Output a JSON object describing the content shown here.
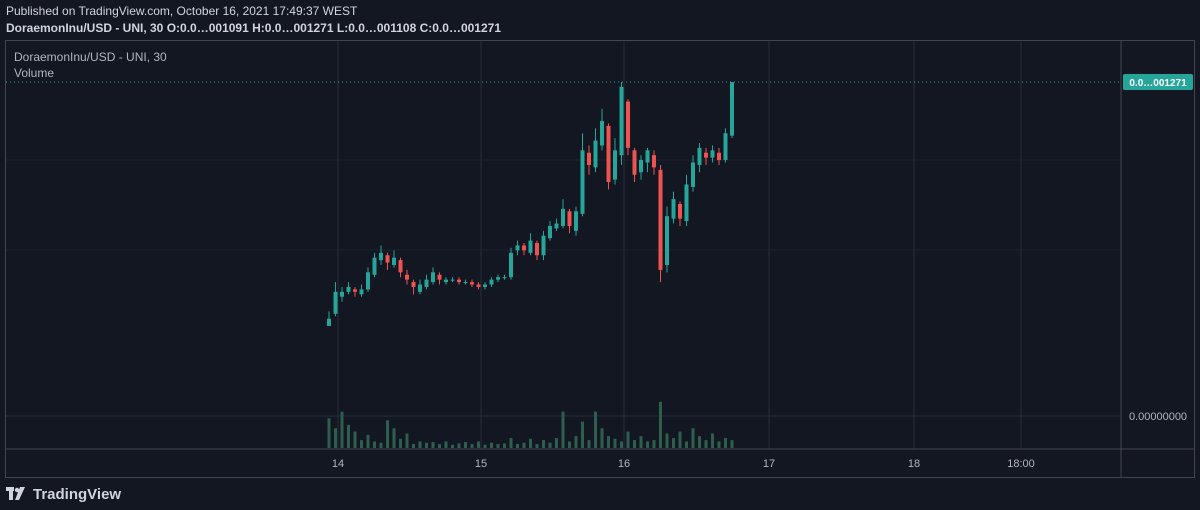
{
  "header": {
    "published": "Published on TradingView.com, October 16, 2021 17:49:37 WEST",
    "symbol_line": "DoraemonInu/USD - UNI, 30",
    "o_label": "O:",
    "o_value": "0.0…001091",
    "h_label": "H:",
    "h_value": "0.0…001271",
    "l_label": "L:",
    "l_value": "0.0…001108",
    "c_label": "C:",
    "c_value": "0.0…001271"
  },
  "legend": {
    "title": "DoraemonInu/USD - UNI, 30",
    "volume": "Volume"
  },
  "price_axis": {
    "last_price_label": "0.0…001271",
    "zero_label": "0.00000000"
  },
  "footer": {
    "brand": "TradingView"
  },
  "colors": {
    "background": "#131722",
    "up": "#26a69a",
    "down": "#ef5350",
    "volume": "#2e5e4e",
    "grid": "#2a2e39",
    "last_price_tag": "#26a69a"
  },
  "chart_data": {
    "type": "candlestick",
    "title": "DoraemonInu/USD - UNI, 30",
    "x_ticks": [
      "14",
      "15",
      "16",
      "17",
      "18",
      "18:00"
    ],
    "y_ticks": [
      "0.0…001271",
      "0.00000000"
    ],
    "grid": true,
    "series": [
      {
        "name": "price",
        "values": [
          [
            0.0,
            0.03,
            0.06,
            0.0,
            0.05
          ],
          [
            0.05,
            0.14,
            0.18,
            0.04,
            0.12
          ],
          [
            0.12,
            0.14,
            0.16,
            0.1,
            0.14
          ],
          [
            0.14,
            0.16,
            0.18,
            0.13,
            0.15
          ],
          [
            0.15,
            0.14,
            0.16,
            0.12,
            0.13
          ],
          [
            0.13,
            0.15,
            0.17,
            0.12,
            0.15
          ],
          [
            0.15,
            0.22,
            0.24,
            0.14,
            0.21
          ],
          [
            0.21,
            0.28,
            0.3,
            0.2,
            0.27
          ],
          [
            0.27,
            0.3,
            0.33,
            0.25,
            0.29
          ],
          [
            0.29,
            0.26,
            0.3,
            0.23,
            0.25
          ],
          [
            0.25,
            0.28,
            0.31,
            0.24,
            0.27
          ],
          [
            0.27,
            0.22,
            0.28,
            0.2,
            0.21
          ],
          [
            0.21,
            0.19,
            0.23,
            0.17,
            0.18
          ],
          [
            0.18,
            0.16,
            0.19,
            0.13,
            0.14
          ],
          [
            0.14,
            0.17,
            0.19,
            0.13,
            0.16
          ],
          [
            0.16,
            0.19,
            0.21,
            0.15,
            0.18
          ],
          [
            0.18,
            0.22,
            0.24,
            0.17,
            0.21
          ],
          [
            0.21,
            0.19,
            0.22,
            0.17,
            0.18
          ],
          [
            0.18,
            0.19,
            0.2,
            0.17,
            0.19
          ],
          [
            0.19,
            0.19,
            0.2,
            0.18,
            0.19
          ],
          [
            0.19,
            0.18,
            0.2,
            0.17,
            0.18
          ],
          [
            0.18,
            0.18,
            0.19,
            0.17,
            0.18
          ],
          [
            0.18,
            0.17,
            0.19,
            0.16,
            0.17
          ],
          [
            0.17,
            0.16,
            0.18,
            0.15,
            0.16
          ],
          [
            0.16,
            0.17,
            0.18,
            0.15,
            0.17
          ],
          [
            0.17,
            0.19,
            0.2,
            0.16,
            0.19
          ],
          [
            0.19,
            0.2,
            0.21,
            0.18,
            0.2
          ],
          [
            0.2,
            0.2,
            0.21,
            0.19,
            0.2
          ],
          [
            0.2,
            0.3,
            0.32,
            0.19,
            0.31
          ],
          [
            0.31,
            0.33,
            0.35,
            0.29,
            0.33
          ],
          [
            0.33,
            0.31,
            0.34,
            0.29,
            0.3
          ],
          [
            0.3,
            0.35,
            0.38,
            0.29,
            0.34
          ],
          [
            0.34,
            0.29,
            0.35,
            0.27,
            0.29
          ],
          [
            0.29,
            0.37,
            0.39,
            0.27,
            0.36
          ],
          [
            0.36,
            0.41,
            0.43,
            0.35,
            0.4
          ],
          [
            0.4,
            0.42,
            0.44,
            0.39,
            0.41
          ],
          [
            0.41,
            0.48,
            0.52,
            0.4,
            0.47
          ],
          [
            0.47,
            0.41,
            0.48,
            0.38,
            0.39
          ],
          [
            0.39,
            0.47,
            0.49,
            0.37,
            0.46
          ],
          [
            0.46,
            0.72,
            0.79,
            0.45,
            0.71
          ],
          [
            0.71,
            0.66,
            0.74,
            0.62,
            0.65
          ],
          [
            0.65,
            0.76,
            0.81,
            0.63,
            0.74
          ],
          [
            0.74,
            0.84,
            0.89,
            0.72,
            0.82
          ],
          [
            0.82,
            0.59,
            0.83,
            0.56,
            0.6
          ],
          [
            0.6,
            0.72,
            0.77,
            0.58,
            0.7
          ],
          [
            0.7,
            0.98,
            1.0,
            0.66,
            0.92
          ],
          [
            0.92,
            0.73,
            0.93,
            0.7,
            0.72
          ],
          [
            0.72,
            0.62,
            0.73,
            0.59,
            0.63
          ],
          [
            0.63,
            0.68,
            0.7,
            0.6,
            0.67
          ],
          [
            0.67,
            0.72,
            0.73,
            0.63,
            0.7
          ],
          [
            0.7,
            0.65,
            0.72,
            0.62,
            0.64
          ],
          [
            0.64,
            0.23,
            0.66,
            0.18,
            0.25
          ],
          [
            0.25,
            0.45,
            0.49,
            0.22,
            0.44
          ],
          [
            0.44,
            0.52,
            0.55,
            0.42,
            0.5
          ],
          [
            0.5,
            0.44,
            0.51,
            0.41,
            0.43
          ],
          [
            0.43,
            0.58,
            0.62,
            0.41,
            0.57
          ],
          [
            0.57,
            0.67,
            0.7,
            0.55,
            0.66
          ],
          [
            0.66,
            0.73,
            0.75,
            0.63,
            0.71
          ],
          [
            0.71,
            0.69,
            0.73,
            0.66,
            0.69
          ],
          [
            0.69,
            0.72,
            0.74,
            0.67,
            0.71
          ],
          [
            0.71,
            0.68,
            0.73,
            0.66,
            0.68
          ],
          [
            0.68,
            0.79,
            0.81,
            0.67,
            0.78
          ],
          [
            0.78,
            1.0,
            1.0,
            0.77,
            1.0
          ]
        ]
      },
      {
        "name": "Volume",
        "values": [
          0.45,
          0.3,
          0.55,
          0.35,
          0.25,
          0.12,
          0.2,
          0.1,
          0.08,
          0.42,
          0.3,
          0.14,
          0.22,
          0.06,
          0.1,
          0.08,
          0.09,
          0.06,
          0.1,
          0.05,
          0.07,
          0.09,
          0.06,
          0.1,
          0.05,
          0.08,
          0.06,
          0.07,
          0.15,
          0.06,
          0.08,
          0.14,
          0.06,
          0.12,
          0.08,
          0.15,
          0.55,
          0.1,
          0.18,
          0.4,
          0.12,
          0.55,
          0.3,
          0.18,
          0.14,
          0.1,
          0.25,
          0.12,
          0.18,
          0.1,
          0.12,
          0.7,
          0.22,
          0.15,
          0.25,
          0.1,
          0.3,
          0.18,
          0.12,
          0.22,
          0.1,
          0.15,
          0.12
        ]
      }
    ]
  }
}
